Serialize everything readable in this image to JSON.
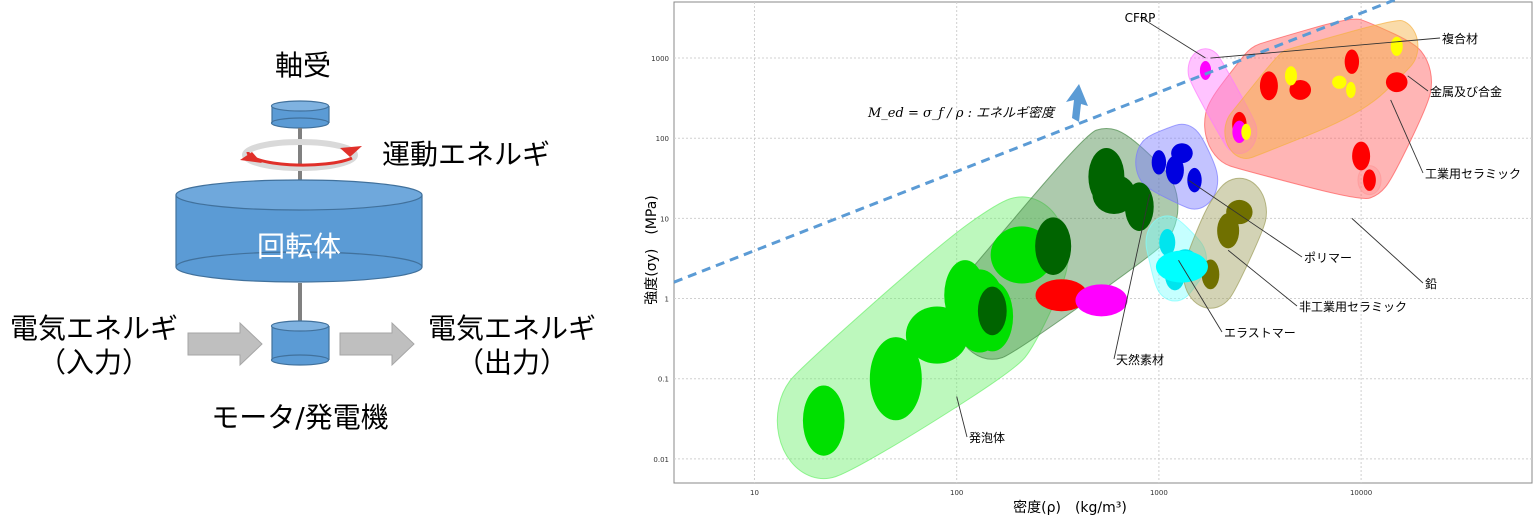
{
  "flywheel": {
    "bearing_label": "軸受",
    "kinetic_label": "運動エネルギ",
    "rotor_label": "回転体",
    "input_label_1": "電気エネルギ",
    "input_label_2": "（入力）",
    "output_label_1": "電気エネルギ",
    "output_label_2": "（出力）",
    "motor_label": "モータ/発電機",
    "colors": {
      "body": "#5b9bd5",
      "edge": "#41719c",
      "arrow": "#bfbfbf",
      "rotation": "#e0302a"
    }
  },
  "chart_data": {
    "type": "scatter",
    "title": "",
    "xlabel": "密度(ρ)　(kg/m³)",
    "ylabel": "強度(σy)　(MPa)",
    "x_scale": "log",
    "y_scale": "log",
    "xlim": [
      4,
      70000
    ],
    "ylim": [
      0.005,
      5000
    ],
    "x_ticks": [
      "10",
      "100",
      "1000",
      "10000"
    ],
    "y_ticks": [
      "0.01",
      "0.1",
      "1",
      "10",
      "100",
      "1000"
    ],
    "grid": true,
    "guide_line": {
      "label": "M_ed = σ_f / ρ : エネルギ密度",
      "points": [
        [
          4,
          1.6
        ],
        [
          25000,
          9000
        ]
      ],
      "color": "#5b9bd5"
    },
    "groups": [
      {
        "name": "発泡体",
        "color": "#00e000",
        "region_color": "#6cf06c",
        "members": [
          [
            22,
            0.03
          ],
          [
            50,
            0.1
          ],
          [
            80,
            0.35
          ],
          [
            110,
            1.1
          ],
          [
            130,
            0.7
          ],
          [
            210,
            3.5
          ],
          [
            150,
            0.6
          ]
        ]
      },
      {
        "name": "天然素材",
        "color": "#006400",
        "region_color": "#4a8a4a",
        "members": [
          [
            150,
            0.7
          ],
          [
            300,
            4.5
          ],
          [
            600,
            20
          ],
          [
            800,
            14
          ],
          [
            550,
            33
          ]
        ]
      },
      {
        "name": "エラストマー",
        "color": "#00e5ee",
        "region_color": "#7fffff",
        "members": [
          [
            1100,
            5
          ],
          [
            1200,
            2
          ],
          [
            1350,
            3
          ]
        ]
      },
      {
        "name": "ポリマー",
        "color": "#0000e0",
        "region_color": "#7b7bff",
        "members": [
          [
            1000,
            50
          ],
          [
            1200,
            40
          ],
          [
            1300,
            65
          ],
          [
            1500,
            30
          ]
        ]
      },
      {
        "name": "非工業用セラミック",
        "color": "#707000",
        "region_color": "#9d9d5a",
        "members": [
          [
            1800,
            2
          ],
          [
            2200,
            7
          ],
          [
            2500,
            12
          ]
        ]
      },
      {
        "name": "工業用セラミック",
        "color": "#ff0000",
        "region_color": "#ff5a5a",
        "members": [
          [
            2500,
            150
          ],
          [
            3500,
            450
          ],
          [
            5000,
            400
          ],
          [
            9000,
            900
          ],
          [
            10000,
            60
          ],
          [
            15000,
            500
          ]
        ]
      },
      {
        "name": "複合材",
        "color": "#ff00ff",
        "region_color": "#ff7aff",
        "members": [
          [
            1700,
            700
          ],
          [
            2500,
            120
          ]
        ]
      },
      {
        "name": "金属及び合金",
        "color": "#ffff00",
        "region_color": "#f5b041",
        "members": [
          [
            2700,
            120
          ],
          [
            4500,
            600
          ],
          [
            7800,
            500
          ],
          [
            8900,
            400
          ],
          [
            15000,
            1400
          ]
        ]
      },
      {
        "name": "鉛",
        "color": "#ff0000",
        "region_color": "#ff9999",
        "members": [
          [
            11000,
            30
          ]
        ]
      }
    ],
    "extra_marks": [
      {
        "label": "",
        "x": 330,
        "y": 1.1,
        "color": "#ff0000"
      },
      {
        "label": "",
        "x": 520,
        "y": 0.95,
        "color": "#ff00ff"
      },
      {
        "label": "",
        "x": 1300,
        "y": 2.5,
        "color": "#00ffff"
      }
    ],
    "callouts": [
      {
        "label": "CFRP",
        "target": [
          1700,
          1000
        ]
      },
      {
        "label": "複合材",
        "target": [
          1800,
          1000
        ]
      },
      {
        "label": "金属及び合金",
        "target": [
          17000,
          600
        ]
      },
      {
        "label": "工業用セラミック",
        "target": [
          14000,
          300
        ]
      },
      {
        "label": "ポリマー",
        "target": [
          1400,
          30
        ]
      },
      {
        "label": "鉛",
        "target": [
          9000,
          10
        ]
      },
      {
        "label": "非工業用セラミック",
        "target": [
          2200,
          4
        ]
      },
      {
        "label": "エラストマー",
        "target": [
          1250,
          3
        ]
      },
      {
        "label": "天然素材",
        "target": [
          900,
          20
        ]
      },
      {
        "label": "発泡体",
        "target": [
          100,
          0.06
        ]
      }
    ]
  }
}
